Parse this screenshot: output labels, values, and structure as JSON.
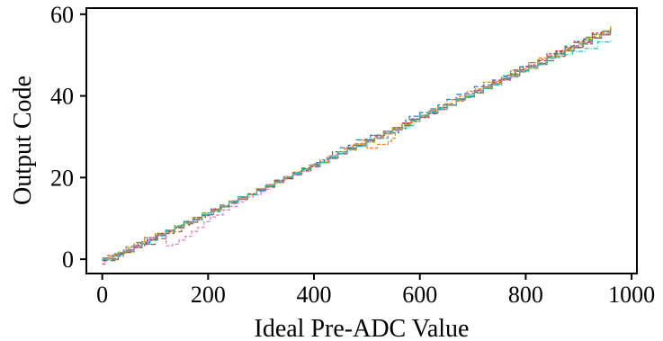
{
  "chart_data": {
    "type": "line",
    "xlabel": "Ideal Pre-ADC Value",
    "ylabel": "Output Code",
    "xlim": [
      -30,
      1010
    ],
    "ylim": [
      -3.5,
      61.5
    ],
    "xticks": [
      0,
      200,
      400,
      600,
      800,
      1000
    ],
    "yticks": [
      0,
      20,
      40,
      60
    ],
    "grid": false,
    "legend": "none",
    "series_style": "dashed step transfer curves, matplotlib tab10 palette",
    "colors": [
      "#1f77b4",
      "#ff7f0e",
      "#2ca02c",
      "#d62728",
      "#9467bd",
      "#8c564b",
      "#e377c2",
      "#7f7f7f",
      "#bcbd22",
      "#17becf"
    ],
    "series": [
      {
        "x": [
          0,
          25,
          40,
          60,
          120,
          240,
          360,
          480,
          560,
          580,
          600,
          720,
          840,
          960
        ],
        "y": [
          0,
          1,
          2,
          3,
          7,
          14,
          21,
          29,
          32,
          35,
          36,
          43,
          50,
          57
        ]
      },
      {
        "x": [
          0,
          20,
          60,
          120,
          240,
          360,
          490,
          500,
          540,
          560,
          600,
          720,
          840,
          960
        ],
        "y": [
          0,
          1,
          3,
          7,
          14,
          21,
          29,
          27,
          29,
          32,
          35,
          43,
          50,
          56
        ]
      },
      {
        "x": [
          0,
          30,
          60,
          120,
          240,
          360,
          480,
          600,
          720,
          840,
          960
        ],
        "y": [
          0,
          1,
          3,
          7,
          14,
          21,
          28,
          35,
          42,
          49,
          57
        ]
      },
      {
        "x": [
          0,
          10,
          50,
          120,
          240,
          360,
          480,
          600,
          720,
          840,
          960
        ],
        "y": [
          -1,
          1,
          3,
          7,
          14,
          21,
          28,
          35,
          42,
          50,
          57
        ]
      },
      {
        "x": [
          0,
          40,
          70,
          120,
          240,
          360,
          480,
          600,
          720,
          840,
          960
        ],
        "y": [
          0,
          2,
          4,
          7,
          14,
          21,
          28,
          35,
          42,
          49,
          56
        ]
      },
      {
        "x": [
          0,
          30,
          60,
          120,
          240,
          360,
          480,
          600,
          720,
          840,
          960
        ],
        "y": [
          0,
          1,
          3,
          6,
          14,
          21,
          28,
          35,
          42,
          49,
          56
        ]
      },
      {
        "x": [
          0,
          60,
          120,
          121,
          240,
          360,
          480,
          600,
          720,
          840,
          960
        ],
        "y": [
          0,
          3,
          7,
          3,
          13,
          21,
          28,
          35,
          42,
          49,
          56
        ]
      },
      {
        "x": [
          0,
          30,
          60,
          120,
          240,
          360,
          480,
          600,
          720,
          840,
          960
        ],
        "y": [
          0,
          2,
          4,
          7,
          14,
          21,
          28,
          35,
          42,
          49,
          56
        ]
      },
      {
        "x": [
          0,
          60,
          120,
          240,
          360,
          480,
          600,
          720,
          840,
          960
        ],
        "y": [
          0,
          4,
          7,
          14,
          21,
          28,
          35,
          42,
          49,
          57
        ]
      },
      {
        "x": [
          0,
          60,
          120,
          240,
          360,
          480,
          560,
          580,
          600,
          720,
          840,
          960
        ],
        "y": [
          0,
          3,
          7,
          14,
          21,
          28,
          32,
          33,
          35,
          42,
          49,
          54
        ]
      }
    ]
  }
}
